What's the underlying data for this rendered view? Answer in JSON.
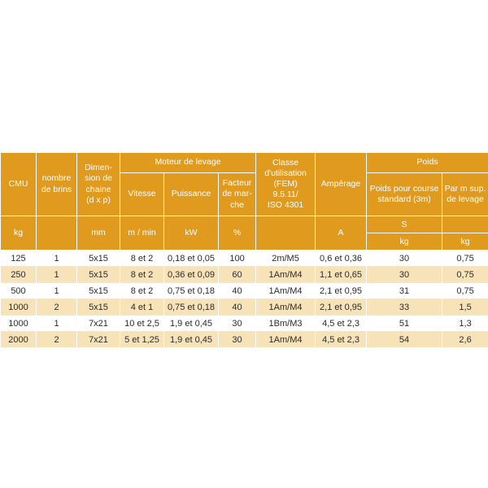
{
  "header": {
    "cmu": "CMU",
    "nombre_brins": "nombre de brins",
    "dimension": "Dimen-\nsion de chaine\n(d x p)",
    "moteur": "Moteur de levage",
    "vitesse": "Vitesse",
    "puissance": "Puissance",
    "facteur": "Facteur de mar-che",
    "classe": "Classe d'utilisation\n(FEM)\n9.5.11/\nISO 4301",
    "amperage": "Ampérage",
    "poids": "Poids",
    "poids_course": "Poids pour course standard (3m)",
    "par_m": "Par m sup. de levage"
  },
  "units": {
    "cmu": "kg",
    "brins": "",
    "dimension": "mm",
    "vitesse": "m / min",
    "puissance": "kW",
    "facteur": "%",
    "classe": "",
    "amperage": "A",
    "poids_course_s": "S",
    "poids_course": "kg",
    "par_m": "kg"
  },
  "rows": [
    [
      "125",
      "1",
      "5x15",
      "8 et 2",
      "0,18 et 0,05",
      "100",
      "2m/M5",
      "0,6 et 0,36",
      "30",
      "0,75"
    ],
    [
      "250",
      "1",
      "5x15",
      "8 et 2",
      "0,36 et 0,09",
      "60",
      "1Am/M4",
      "1,1 et 0,65",
      "30",
      "0,75"
    ],
    [
      "500",
      "1",
      "5x15",
      "8 et 2",
      "0,75 et 0,18",
      "40",
      "1Am/M4",
      "2,1 et 0,95",
      "31",
      "0,75"
    ],
    [
      "1000",
      "2",
      "5x15",
      "4 et 1",
      "0,75 et 0,18",
      "40",
      "1Am/M4",
      "2,1 et 0,95",
      "33",
      "1,5"
    ],
    [
      "1000",
      "1",
      "7x21",
      "10 et 2,5",
      "1,9 et 0,45",
      "30",
      "1Bm/M3",
      "4,5 et 2,3",
      "51",
      "1,3"
    ],
    [
      "2000",
      "2",
      "7x21",
      "5 et 1,25",
      "1,9 et 0,45",
      "30",
      "1Am/M4",
      "4,5 et 2,3",
      "54",
      "2,6"
    ]
  ],
  "colors": {
    "header_bg": "#e09b1f",
    "stripe": "#f8e3b9",
    "text": "#2b2b2b"
  }
}
